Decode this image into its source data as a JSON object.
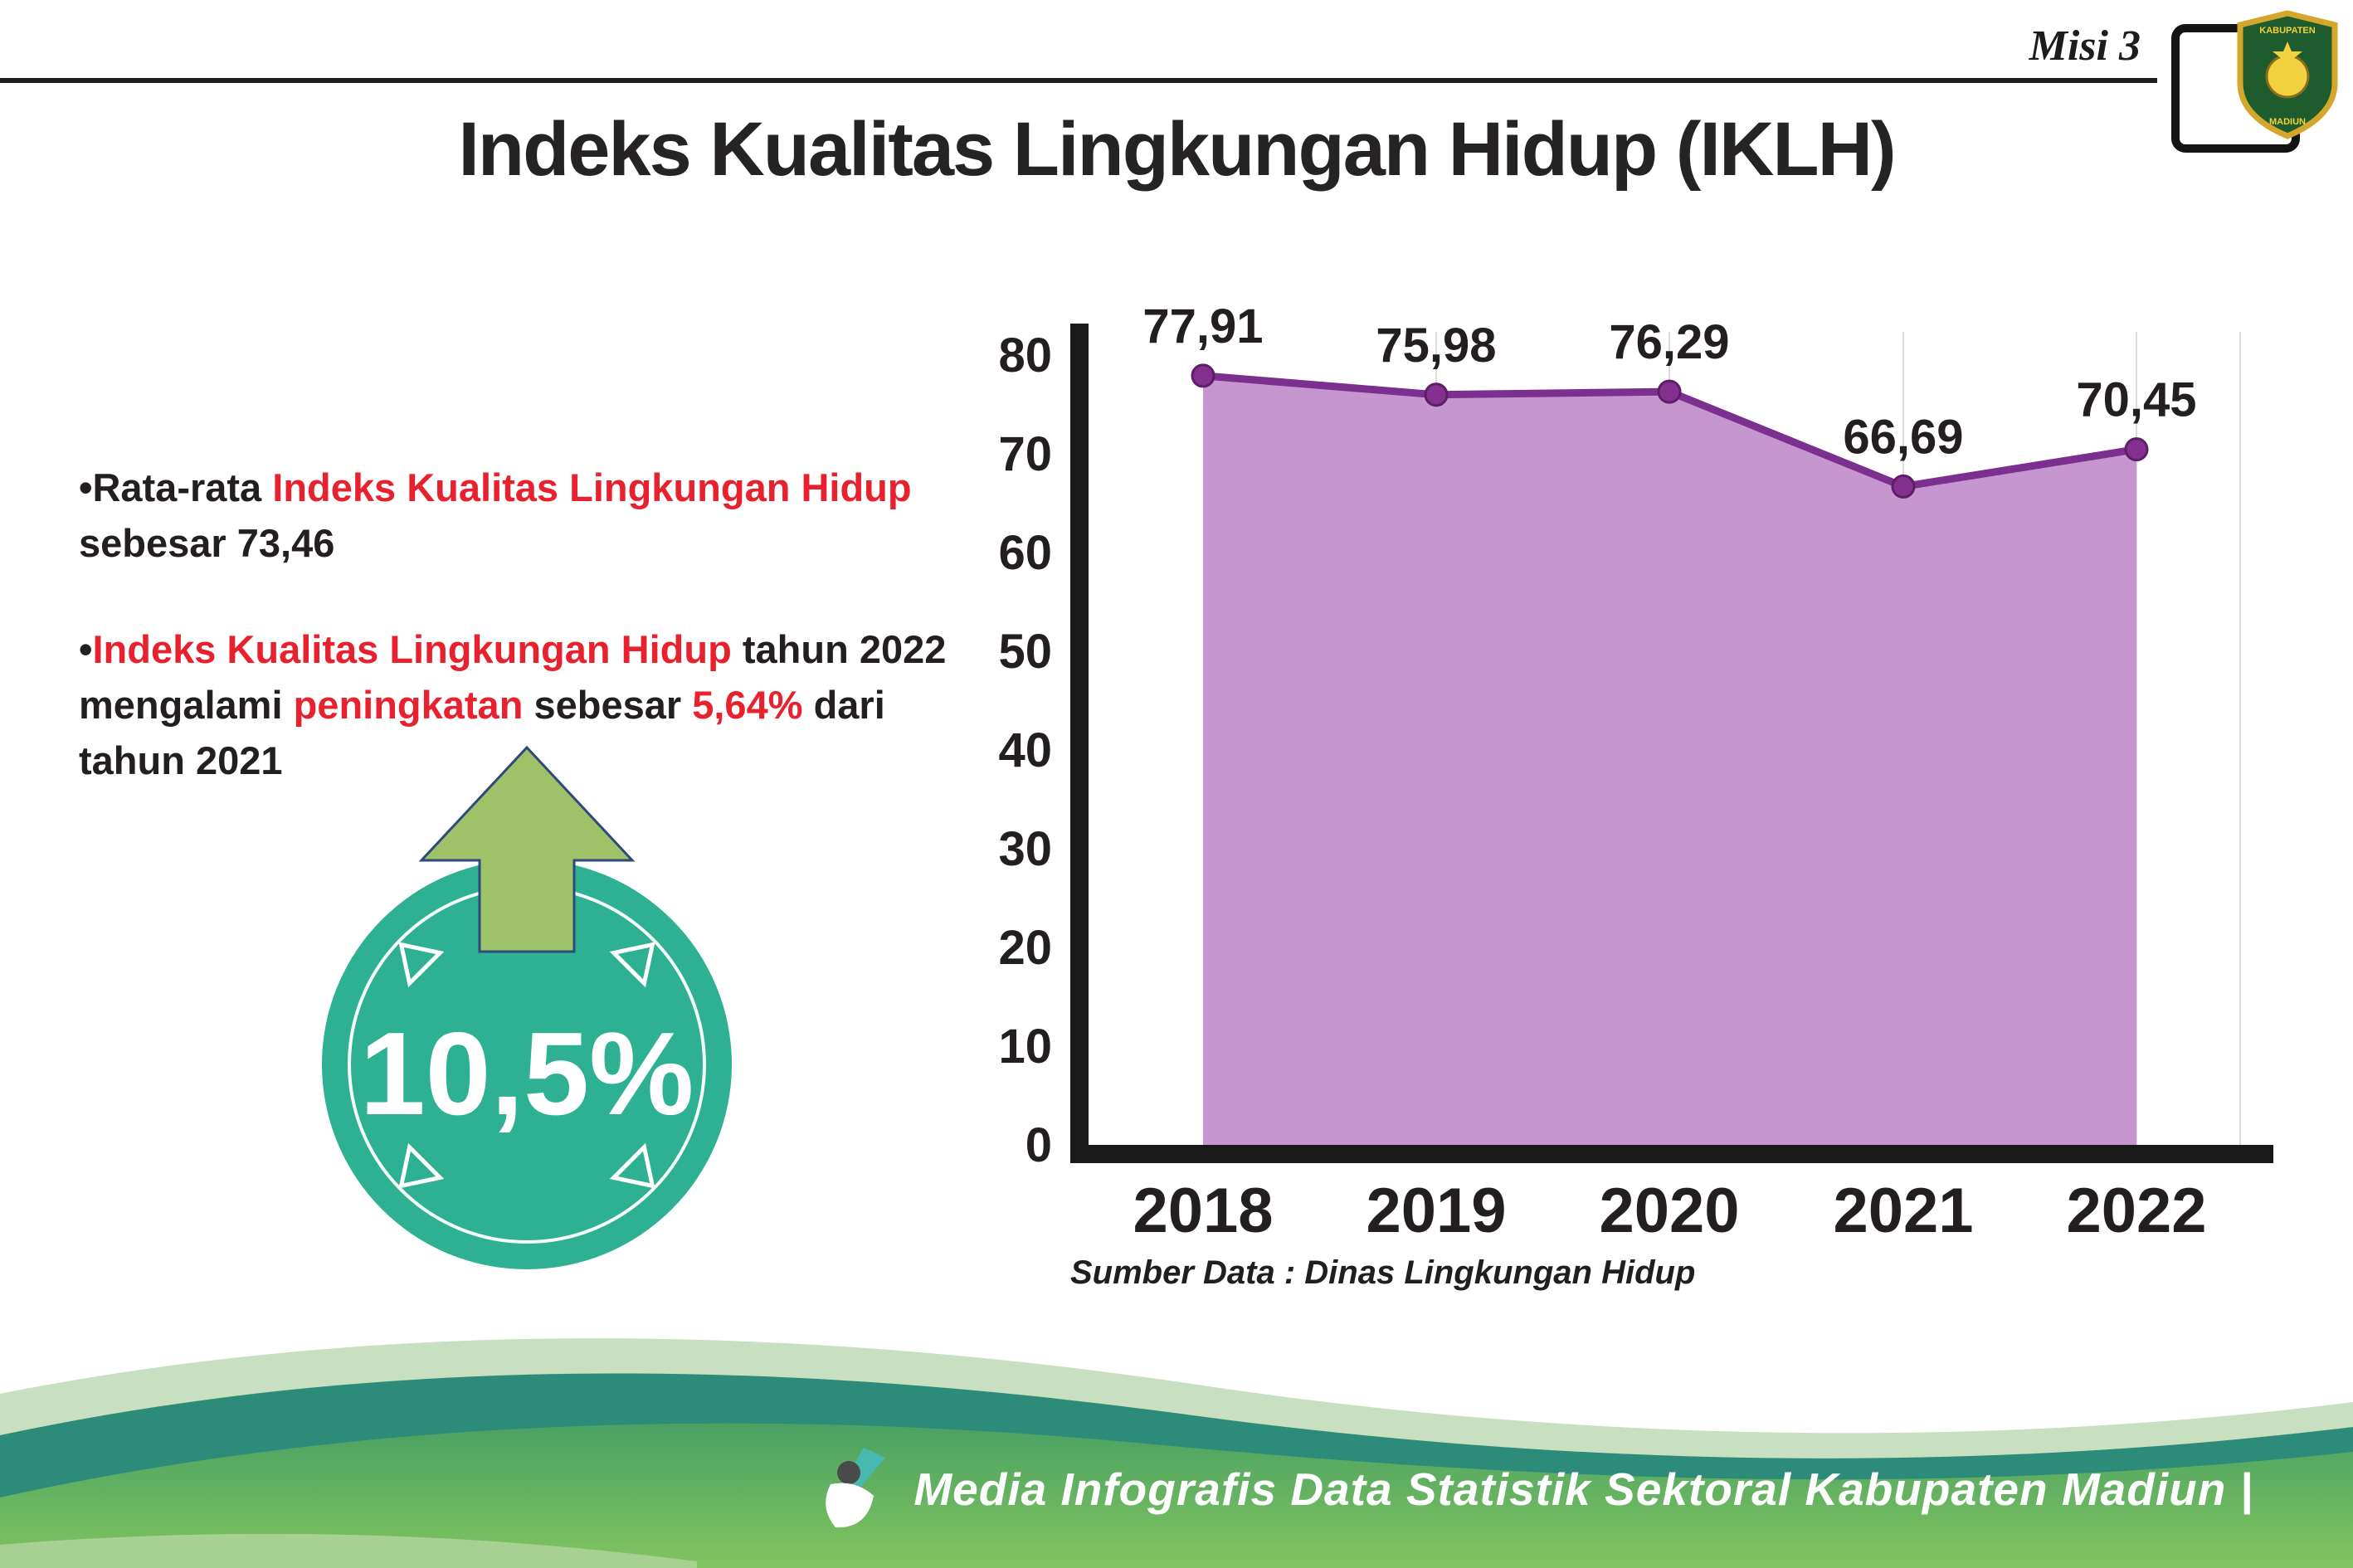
{
  "header": {
    "misi_label": "Misi 3",
    "title": "Indeks Kualitas Lingkungan Hidup (IKLH)",
    "logo": {
      "top_text": "KABUPATEN",
      "bottom_text": "MADIUN"
    }
  },
  "bullets": [
    {
      "segments": [
        {
          "text": "•Rata-rata ",
          "red": false
        },
        {
          "text": "Indeks Kualitas Lingkungan Hidup",
          "red": true
        },
        {
          "br": true
        },
        {
          "text": "sebesar 73,46",
          "red": false
        }
      ]
    },
    {
      "segments": [
        {
          "text": "•",
          "red": false
        },
        {
          "text": "Indeks Kualitas Lingkungan Hidup",
          "red": true
        },
        {
          "text": " tahun 2022",
          "red": false
        },
        {
          "br": true
        },
        {
          "text": "mengalami ",
          "red": false
        },
        {
          "text": "peningkatan",
          "red": true
        },
        {
          "text": " sebesar ",
          "red": false
        },
        {
          "text": "5,64%",
          "red": true
        },
        {
          "text": " dari",
          "red": false
        },
        {
          "br": true
        },
        {
          "text": "tahun 2021",
          "red": false
        }
      ]
    }
  ],
  "badge": {
    "value": "10,5%",
    "circle_color": "#2eb092",
    "arrow_color": "#9ec267"
  },
  "chart_data": {
    "type": "area",
    "title": "",
    "categories": [
      "2018",
      "2019",
      "2020",
      "2021",
      "2022"
    ],
    "values": [
      77.91,
      75.98,
      76.29,
      66.69,
      70.45
    ],
    "point_labels": [
      "77,91",
      "75,98",
      "76,29",
      "66,69",
      "70,45"
    ],
    "ylim": [
      0,
      80
    ],
    "yticks": [
      0,
      10,
      20,
      30,
      40,
      50,
      60,
      70,
      80
    ],
    "grid": "vertical-light",
    "legend": "none",
    "line_color": "#7b2f8e",
    "fill_color": "#c795cf",
    "source_note": "Sumber Data : Dinas Lingkungan Hidup"
  },
  "footer": {
    "text": "Media Infografis Data Statistik Sektoral Kabupaten Madiun |"
  },
  "colors": {
    "accent_red": "#e8212e",
    "text_dark": "#231f20",
    "teal": "#2eb092",
    "purple": "#7b2f8e",
    "footer_teal": "#2d8c79",
    "footer_green": "#57a95f"
  }
}
